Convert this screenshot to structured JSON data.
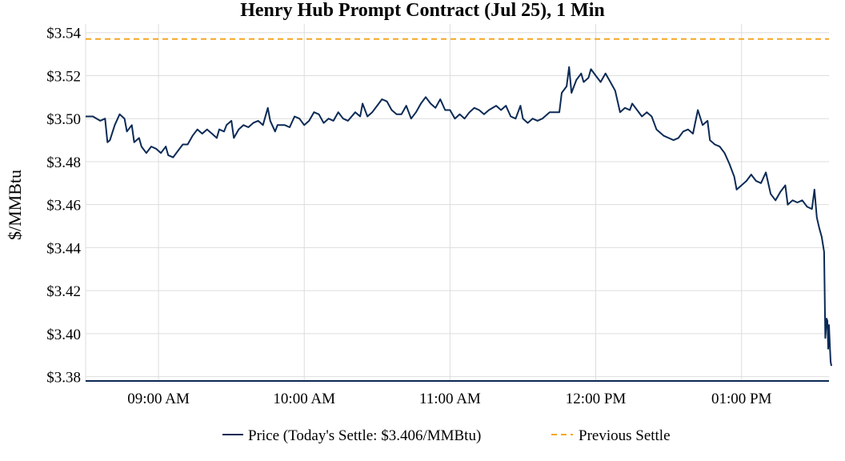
{
  "chart_data": {
    "type": "line",
    "title": "Henry Hub Prompt Contract (Jul 25), 1 Min",
    "xlabel": "",
    "ylabel": "$/MMBtu",
    "x_range": [
      "08:30",
      "13:36"
    ],
    "ylim": [
      3.378,
      3.544
    ],
    "y_ticks": [
      3.38,
      3.4,
      3.42,
      3.44,
      3.46,
      3.48,
      3.5,
      3.52,
      3.54
    ],
    "y_tick_labels": [
      "$3.38",
      "$3.40",
      "$3.42",
      "$3.44",
      "$3.46",
      "$3.48",
      "$3.50",
      "$3.52",
      "$3.54"
    ],
    "x_ticks": [
      "09:00",
      "10:00",
      "11:00",
      "12:00",
      "13:00"
    ],
    "x_tick_labels": [
      "09:00 AM",
      "10:00 AM",
      "11:00 AM",
      "12:00 PM",
      "01:00 PM"
    ],
    "grid": true,
    "legend_position": "bottom-center",
    "colors": {
      "price": "#0b2a55",
      "previous_settle": "#f5a623",
      "grid": "#dddddd",
      "axis": "#0b2a55"
    },
    "series": [
      {
        "name": "Price (Today's Settle: $3.406/MMBtu)",
        "style": "solid",
        "points": [
          [
            "08:30",
            3.501
          ],
          [
            "08:33",
            3.501
          ],
          [
            "08:36",
            3.499
          ],
          [
            "08:38",
            3.5
          ],
          [
            "08:39",
            3.489
          ],
          [
            "08:40",
            3.49
          ],
          [
            "08:42",
            3.497
          ],
          [
            "08:44",
            3.502
          ],
          [
            "08:46",
            3.5
          ],
          [
            "08:47",
            3.494
          ],
          [
            "08:49",
            3.497
          ],
          [
            "08:50",
            3.489
          ],
          [
            "08:52",
            3.491
          ],
          [
            "08:53",
            3.487
          ],
          [
            "08:55",
            3.484
          ],
          [
            "08:57",
            3.487
          ],
          [
            "08:59",
            3.486
          ],
          [
            "09:01",
            3.484
          ],
          [
            "09:03",
            3.487
          ],
          [
            "09:04",
            3.483
          ],
          [
            "09:06",
            3.482
          ],
          [
            "09:08",
            3.485
          ],
          [
            "09:10",
            3.488
          ],
          [
            "09:12",
            3.488
          ],
          [
            "09:14",
            3.492
          ],
          [
            "09:16",
            3.495
          ],
          [
            "09:18",
            3.493
          ],
          [
            "09:20",
            3.495
          ],
          [
            "09:22",
            3.493
          ],
          [
            "09:24",
            3.491
          ],
          [
            "09:25",
            3.495
          ],
          [
            "09:27",
            3.494
          ],
          [
            "09:28",
            3.497
          ],
          [
            "09:30",
            3.499
          ],
          [
            "09:31",
            3.491
          ],
          [
            "09:33",
            3.495
          ],
          [
            "09:35",
            3.497
          ],
          [
            "09:37",
            3.496
          ],
          [
            "09:39",
            3.498
          ],
          [
            "09:41",
            3.499
          ],
          [
            "09:43",
            3.497
          ],
          [
            "09:45",
            3.505
          ],
          [
            "09:46",
            3.499
          ],
          [
            "09:48",
            3.494
          ],
          [
            "09:49",
            3.497
          ],
          [
            "09:52",
            3.497
          ],
          [
            "09:54",
            3.496
          ],
          [
            "09:56",
            3.501
          ],
          [
            "09:58",
            3.5
          ],
          [
            "10:00",
            3.497
          ],
          [
            "10:02",
            3.499
          ],
          [
            "10:04",
            3.503
          ],
          [
            "10:06",
            3.502
          ],
          [
            "10:08",
            3.498
          ],
          [
            "10:10",
            3.5
          ],
          [
            "10:12",
            3.499
          ],
          [
            "10:14",
            3.503
          ],
          [
            "10:16",
            3.5
          ],
          [
            "10:18",
            3.499
          ],
          [
            "10:21",
            3.503
          ],
          [
            "10:23",
            3.501
          ],
          [
            "10:24",
            3.507
          ],
          [
            "10:26",
            3.501
          ],
          [
            "10:28",
            3.503
          ],
          [
            "10:30",
            3.506
          ],
          [
            "10:32",
            3.509
          ],
          [
            "10:34",
            3.508
          ],
          [
            "10:36",
            3.504
          ],
          [
            "10:38",
            3.502
          ],
          [
            "10:40",
            3.502
          ],
          [
            "10:42",
            3.506
          ],
          [
            "10:44",
            3.5
          ],
          [
            "10:46",
            3.503
          ],
          [
            "10:48",
            3.507
          ],
          [
            "10:50",
            3.51
          ],
          [
            "10:52",
            3.507
          ],
          [
            "10:54",
            3.505
          ],
          [
            "10:56",
            3.509
          ],
          [
            "10:58",
            3.504
          ],
          [
            "11:00",
            3.504
          ],
          [
            "11:02",
            3.5
          ],
          [
            "11:04",
            3.502
          ],
          [
            "11:06",
            3.5
          ],
          [
            "11:08",
            3.503
          ],
          [
            "11:10",
            3.505
          ],
          [
            "11:12",
            3.504
          ],
          [
            "11:14",
            3.502
          ],
          [
            "11:16",
            3.504
          ],
          [
            "11:19",
            3.506
          ],
          [
            "11:21",
            3.504
          ],
          [
            "11:23",
            3.506
          ],
          [
            "11:25",
            3.501
          ],
          [
            "11:27",
            3.5
          ],
          [
            "11:29",
            3.506
          ],
          [
            "11:30",
            3.5
          ],
          [
            "11:32",
            3.498
          ],
          [
            "11:34",
            3.5
          ],
          [
            "11:36",
            3.499
          ],
          [
            "11:38",
            3.5
          ],
          [
            "11:41",
            3.503
          ],
          [
            "11:43",
            3.503
          ],
          [
            "11:45",
            3.503
          ],
          [
            "11:46",
            3.512
          ],
          [
            "11:48",
            3.515
          ],
          [
            "11:49",
            3.524
          ],
          [
            "11:50",
            3.512
          ],
          [
            "11:52",
            3.518
          ],
          [
            "11:54",
            3.521
          ],
          [
            "11:55",
            3.517
          ],
          [
            "11:57",
            3.519
          ],
          [
            "11:58",
            3.523
          ],
          [
            "12:00",
            3.52
          ],
          [
            "12:02",
            3.517
          ],
          [
            "12:04",
            3.521
          ],
          [
            "12:06",
            3.517
          ],
          [
            "12:08",
            3.513
          ],
          [
            "12:10",
            3.503
          ],
          [
            "12:12",
            3.505
          ],
          [
            "12:14",
            3.504
          ],
          [
            "12:15",
            3.507
          ],
          [
            "12:17",
            3.504
          ],
          [
            "12:19",
            3.501
          ],
          [
            "12:21",
            3.503
          ],
          [
            "12:23",
            3.501
          ],
          [
            "12:25",
            3.495
          ],
          [
            "12:28",
            3.492
          ],
          [
            "12:30",
            3.491
          ],
          [
            "12:32",
            3.49
          ],
          [
            "12:34",
            3.491
          ],
          [
            "12:36",
            3.494
          ],
          [
            "12:38",
            3.495
          ],
          [
            "12:40",
            3.493
          ],
          [
            "12:42",
            3.504
          ],
          [
            "12:44",
            3.497
          ],
          [
            "12:46",
            3.499
          ],
          [
            "12:47",
            3.49
          ],
          [
            "12:49",
            3.488
          ],
          [
            "12:51",
            3.487
          ],
          [
            "12:53",
            3.484
          ],
          [
            "12:55",
            3.479
          ],
          [
            "12:57",
            3.473
          ],
          [
            "12:58",
            3.467
          ],
          [
            "13:00",
            3.469
          ],
          [
            "13:02",
            3.471
          ],
          [
            "13:04",
            3.474
          ],
          [
            "13:06",
            3.471
          ],
          [
            "13:08",
            3.47
          ],
          [
            "13:10",
            3.475
          ],
          [
            "13:12",
            3.465
          ],
          [
            "13:14",
            3.462
          ],
          [
            "13:16",
            3.466
          ],
          [
            "13:18",
            3.469
          ],
          [
            "13:19",
            3.46
          ],
          [
            "13:21",
            3.462
          ],
          [
            "13:23",
            3.461
          ],
          [
            "13:25",
            3.462
          ],
          [
            "13:27",
            3.459
          ],
          [
            "13:29",
            3.458
          ],
          [
            "13:30",
            3.467
          ],
          [
            "13:31",
            3.454
          ],
          [
            "13:32",
            3.449
          ],
          [
            "13:33",
            3.445
          ],
          [
            "13:34",
            3.438
          ],
          [
            "13:34:30",
            3.398
          ],
          [
            "13:35",
            3.407
          ],
          [
            "13:35:20",
            3.406
          ],
          [
            "13:35:40",
            3.393
          ],
          [
            "13:36",
            3.404
          ],
          [
            "13:36:20",
            3.395
          ],
          [
            "13:36:40",
            3.387
          ],
          [
            "13:37",
            3.385
          ]
        ]
      },
      {
        "name": "Previous Settle",
        "style": "dashed",
        "value": 3.537
      }
    ]
  }
}
